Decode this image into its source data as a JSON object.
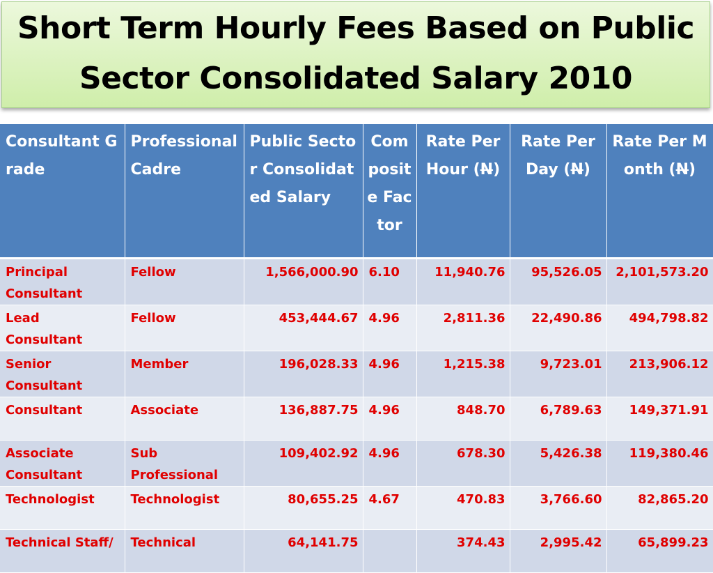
{
  "title": "Short Term Hourly Fees Based on Public Sector Consolidated Salary 2010",
  "headers": {
    "grade": "Consultant Grade",
    "cadre": "Professional Cadre",
    "salary": "Public Sector Consolidated Salary",
    "factor": "Composite Factor",
    "hour_prefix": "Rate Per Hour (",
    "day_prefix": "Rate Per Day (",
    "month_prefix": "Rate Per Month (",
    "currency": "N",
    "close": ")"
  },
  "rows": [
    {
      "grade": "Principal Consultant",
      "cadre": "Fellow",
      "salary": "1,566,000.90",
      "factor": "6.10",
      "hour": "11,940.76",
      "day": "95,526.05",
      "month": "2,101,573.20"
    },
    {
      "grade": "Lead Consultant",
      "cadre": "Fellow",
      "salary": "453,444.67",
      "factor": "4.96",
      "hour": "2,811.36",
      "day": "22,490.86",
      "month": "494,798.82"
    },
    {
      "grade": "Senior Consultant",
      "cadre": "Member",
      "salary": "196,028.33",
      "factor": "4.96",
      "hour": "1,215.38",
      "day": "9,723.01",
      "month": "213,906.12"
    },
    {
      "grade": "Consultant",
      "cadre": "Associate",
      "salary": "136,887.75",
      "factor": "4.96",
      "hour": "848.70",
      "day": "6,789.63",
      "month": "149,371.91"
    },
    {
      "grade": "Associate Consultant",
      "cadre": "Sub Professional",
      "salary": "109,402.92",
      "factor": "4.96",
      "hour": "678.30",
      "day": "5,426.38",
      "month": "119,380.46"
    },
    {
      "grade": "Technologist",
      "cadre": "Technologist",
      "salary": "80,655.25",
      "factor": "4.67",
      "hour": "470.83",
      "day": "3,766.60",
      "month": "82,865.20"
    },
    {
      "grade": "Technical Staff/",
      "cadre": "Technical",
      "salary": "64,141.75",
      "factor": "",
      "hour": "374.43",
      "day": "2,995.42",
      "month": "65,899.23"
    }
  ]
}
